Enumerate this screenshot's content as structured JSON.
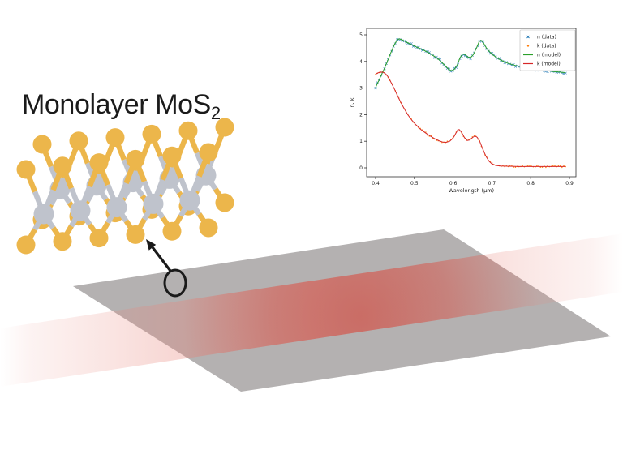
{
  "title": {
    "text": "Monolayer MoS",
    "subscript": "2"
  },
  "colors": {
    "ink": "#1a1a1a",
    "sulfur": "#ecb64b",
    "molybdenum": "#bfc3cc",
    "substrate": "#b4b1b1",
    "beam_soft": "#e8857b",
    "beam_core": "#c83c32",
    "n_data": "#1f77b4",
    "k_data": "#ff7f0e",
    "n_model": "#2ca02c",
    "k_model": "#d62728",
    "axis": "#333333",
    "legend_border": "#bbbbbb"
  },
  "lattice": {
    "rows": 2,
    "cols": 6,
    "top_atom": "S",
    "middle_atom": "Mo",
    "bottom_atom": "S"
  },
  "chart_data": {
    "type": "line",
    "title": "",
    "xlabel": "Wavelength (μm)",
    "ylabel": "n, k",
    "xlim": [
      0.377,
      0.917
    ],
    "ylim": [
      -0.2,
      5.15
    ],
    "xticks": [
      0.4,
      0.5,
      0.6,
      0.7,
      0.8,
      0.9
    ],
    "yticks": [
      0,
      1,
      2,
      3,
      4,
      5
    ],
    "grid": false,
    "legend_position": "upper right",
    "legend": [
      "n (data)",
      "k (data)",
      "n (model)",
      "k (model)"
    ],
    "series": [
      {
        "name": "n (data)",
        "type": "scatter",
        "marker": "x",
        "color_key": "n_data",
        "follows": "n"
      },
      {
        "name": "k (data)",
        "type": "scatter",
        "marker": "dot",
        "color_key": "k_data",
        "follows": "k"
      },
      {
        "name": "n (model)",
        "type": "line",
        "marker": "line",
        "color_key": "n_model",
        "follows": "n"
      },
      {
        "name": "k (model)",
        "type": "line",
        "marker": "line",
        "color_key": "k_model",
        "follows": "k"
      }
    ],
    "curves": {
      "n": [
        [
          0.4,
          3.02
        ],
        [
          0.408,
          3.27
        ],
        [
          0.416,
          3.52
        ],
        [
          0.424,
          3.78
        ],
        [
          0.432,
          4.06
        ],
        [
          0.44,
          4.35
        ],
        [
          0.448,
          4.62
        ],
        [
          0.455,
          4.8
        ],
        [
          0.46,
          4.85
        ],
        [
          0.468,
          4.82
        ],
        [
          0.478,
          4.74
        ],
        [
          0.49,
          4.65
        ],
        [
          0.505,
          4.55
        ],
        [
          0.52,
          4.45
        ],
        [
          0.535,
          4.34
        ],
        [
          0.55,
          4.21
        ],
        [
          0.565,
          4.05
        ],
        [
          0.578,
          3.86
        ],
        [
          0.588,
          3.71
        ],
        [
          0.596,
          3.65
        ],
        [
          0.603,
          3.7
        ],
        [
          0.611,
          3.88
        ],
        [
          0.618,
          4.15
        ],
        [
          0.624,
          4.28
        ],
        [
          0.631,
          4.26
        ],
        [
          0.638,
          4.17
        ],
        [
          0.645,
          4.14
        ],
        [
          0.652,
          4.26
        ],
        [
          0.66,
          4.5
        ],
        [
          0.667,
          4.74
        ],
        [
          0.672,
          4.8
        ],
        [
          0.678,
          4.7
        ],
        [
          0.686,
          4.5
        ],
        [
          0.695,
          4.35
        ],
        [
          0.705,
          4.22
        ],
        [
          0.72,
          4.07
        ],
        [
          0.74,
          3.94
        ],
        [
          0.76,
          3.85
        ],
        [
          0.78,
          3.79
        ],
        [
          0.8,
          3.74
        ],
        [
          0.82,
          3.7
        ],
        [
          0.84,
          3.66
        ],
        [
          0.86,
          3.62
        ],
        [
          0.875,
          3.6
        ],
        [
          0.89,
          3.58
        ]
      ],
      "k": [
        [
          0.4,
          3.52
        ],
        [
          0.406,
          3.57
        ],
        [
          0.413,
          3.6
        ],
        [
          0.42,
          3.59
        ],
        [
          0.427,
          3.52
        ],
        [
          0.434,
          3.38
        ],
        [
          0.441,
          3.18
        ],
        [
          0.449,
          2.95
        ],
        [
          0.457,
          2.7
        ],
        [
          0.465,
          2.46
        ],
        [
          0.474,
          2.22
        ],
        [
          0.483,
          2.0
        ],
        [
          0.493,
          1.8
        ],
        [
          0.504,
          1.62
        ],
        [
          0.516,
          1.45
        ],
        [
          0.528,
          1.32
        ],
        [
          0.54,
          1.2
        ],
        [
          0.552,
          1.1
        ],
        [
          0.563,
          1.02
        ],
        [
          0.573,
          0.97
        ],
        [
          0.582,
          0.96
        ],
        [
          0.591,
          1.0
        ],
        [
          0.6,
          1.12
        ],
        [
          0.607,
          1.3
        ],
        [
          0.612,
          1.43
        ],
        [
          0.616,
          1.44
        ],
        [
          0.622,
          1.33
        ],
        [
          0.629,
          1.14
        ],
        [
          0.636,
          1.03
        ],
        [
          0.643,
          1.05
        ],
        [
          0.65,
          1.14
        ],
        [
          0.656,
          1.2
        ],
        [
          0.662,
          1.15
        ],
        [
          0.669,
          0.98
        ],
        [
          0.676,
          0.72
        ],
        [
          0.684,
          0.45
        ],
        [
          0.692,
          0.26
        ],
        [
          0.7,
          0.15
        ],
        [
          0.71,
          0.09
        ],
        [
          0.722,
          0.07
        ],
        [
          0.74,
          0.06
        ],
        [
          0.77,
          0.05
        ],
        [
          0.8,
          0.05
        ],
        [
          0.84,
          0.05
        ],
        [
          0.89,
          0.05
        ]
      ]
    }
  }
}
